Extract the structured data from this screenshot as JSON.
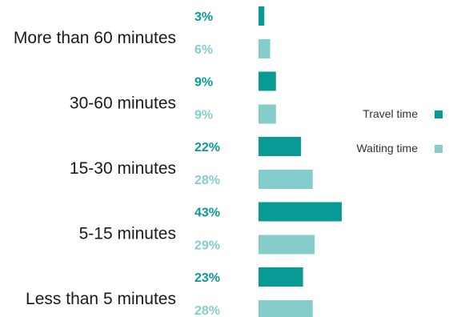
{
  "chart_data": {
    "type": "bar",
    "orientation": "horizontal",
    "categories": [
      "More than 60 minutes",
      "30-60 minutes",
      "15-30 minutes",
      "5-15 minutes",
      "Less than 5 minutes"
    ],
    "series": [
      {
        "name": "Travel time",
        "color": "#0a9a95",
        "values": [
          3,
          9,
          22,
          43,
          23
        ]
      },
      {
        "name": "Waiting time",
        "color": "#85cdcb",
        "values": [
          6,
          9,
          28,
          29,
          28
        ]
      }
    ],
    "value_suffix": "%",
    "legend_position": "right",
    "grid": false
  }
}
